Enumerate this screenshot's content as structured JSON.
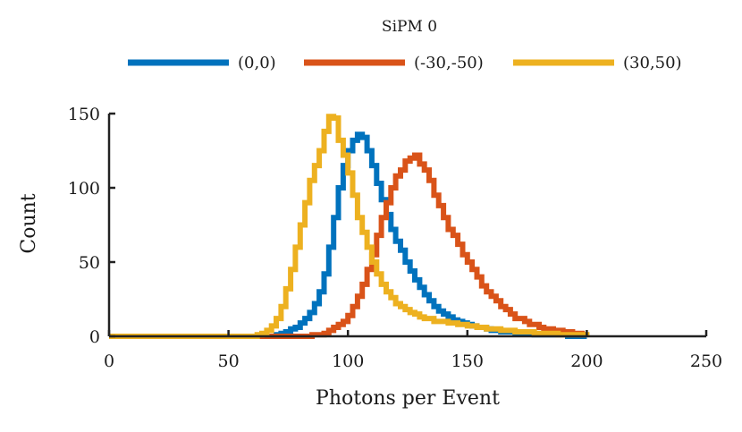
{
  "chart_data": {
    "type": "line",
    "style": "step-histogram",
    "title": "SiPM 0",
    "xlabel": "Photons per Event",
    "ylabel": "Count",
    "xlim": [
      0,
      250
    ],
    "ylim": [
      0,
      150
    ],
    "xticks": [
      "0",
      "50",
      "100",
      "150",
      "200",
      "250"
    ],
    "yticks": [
      "0",
      "50",
      "100",
      "150"
    ],
    "legend_position": "top",
    "grid": false,
    "series": [
      {
        "name": "(0,0)",
        "color": "#0072BD",
        "x": [
          0,
          5,
          10,
          15,
          20,
          25,
          30,
          35,
          40,
          45,
          50,
          55,
          60,
          62,
          64,
          66,
          68,
          70,
          72,
          74,
          76,
          78,
          80,
          82,
          84,
          86,
          88,
          90,
          92,
          94,
          96,
          98,
          100,
          102,
          104,
          106,
          108,
          110,
          112,
          114,
          116,
          118,
          120,
          122,
          124,
          126,
          128,
          130,
          132,
          134,
          136,
          138,
          140,
          142,
          144,
          146,
          148,
          150,
          152,
          154,
          156,
          158,
          160,
          162,
          164,
          166,
          168,
          170,
          172,
          174,
          176,
          178,
          180,
          182,
          184,
          186,
          188,
          190,
          192,
          194,
          196,
          198,
          200
        ],
        "y": [
          0,
          0,
          0,
          0,
          0,
          0,
          0,
          0,
          0,
          0,
          0,
          0,
          0,
          0,
          0,
          0,
          0,
          1,
          2,
          3,
          5,
          6,
          9,
          12,
          16,
          22,
          30,
          42,
          60,
          80,
          100,
          115,
          125,
          132,
          136,
          134,
          125,
          115,
          103,
          92,
          82,
          72,
          64,
          58,
          50,
          44,
          38,
          33,
          28,
          24,
          20,
          17,
          15,
          13,
          11,
          10,
          9,
          8,
          7,
          6,
          6,
          5,
          4,
          4,
          3,
          3,
          3,
          2,
          2,
          2,
          2,
          1,
          1,
          1,
          1,
          1,
          1,
          1,
          0,
          0,
          0,
          0,
          0
        ]
      },
      {
        "name": "(-30,-50)",
        "color": "#D95319",
        "x": [
          0,
          5,
          10,
          15,
          20,
          25,
          30,
          35,
          40,
          45,
          50,
          55,
          60,
          65,
          70,
          75,
          80,
          85,
          90,
          92,
          94,
          96,
          98,
          100,
          102,
          104,
          106,
          108,
          110,
          112,
          114,
          116,
          118,
          120,
          122,
          124,
          126,
          128,
          130,
          132,
          134,
          136,
          138,
          140,
          142,
          144,
          146,
          148,
          150,
          152,
          154,
          156,
          158,
          160,
          162,
          164,
          166,
          168,
          170,
          172,
          174,
          176,
          178,
          180,
          182,
          184,
          186,
          188,
          190,
          192,
          194,
          196,
          198,
          200
        ],
        "y": [
          0,
          0,
          0,
          0,
          0,
          0,
          0,
          0,
          0,
          0,
          0,
          0,
          0,
          0,
          0,
          0,
          0,
          1,
          2,
          4,
          6,
          8,
          10,
          14,
          20,
          27,
          35,
          45,
          55,
          68,
          80,
          90,
          100,
          108,
          112,
          118,
          120,
          122,
          116,
          112,
          105,
          95,
          88,
          80,
          72,
          68,
          62,
          55,
          50,
          45,
          40,
          34,
          30,
          27,
          24,
          20,
          18,
          15,
          12,
          12,
          10,
          8,
          8,
          6,
          5,
          5,
          4,
          4,
          3,
          3,
          2,
          2,
          1,
          1
        ]
      },
      {
        "name": "(30,50)",
        "color": "#EDB120",
        "x": [
          0,
          5,
          10,
          15,
          20,
          25,
          30,
          35,
          40,
          45,
          50,
          55,
          60,
          62,
          64,
          66,
          68,
          70,
          72,
          74,
          76,
          78,
          80,
          82,
          84,
          86,
          88,
          90,
          92,
          94,
          96,
          98,
          100,
          102,
          104,
          106,
          108,
          110,
          112,
          114,
          116,
          118,
          120,
          122,
          124,
          126,
          128,
          130,
          132,
          134,
          136,
          138,
          140,
          142,
          144,
          146,
          148,
          150,
          152,
          154,
          156,
          158,
          160,
          162,
          164,
          166,
          168,
          170,
          172,
          174,
          176,
          178,
          180,
          182,
          184,
          186,
          188,
          190,
          192,
          194,
          196,
          198,
          200
        ],
        "y": [
          0,
          0,
          0,
          0,
          0,
          0,
          0,
          0,
          0,
          0,
          0,
          0,
          0,
          1,
          2,
          4,
          7,
          12,
          20,
          32,
          45,
          60,
          75,
          90,
          105,
          115,
          125,
          138,
          148,
          147,
          132,
          122,
          110,
          95,
          80,
          70,
          60,
          50,
          42,
          35,
          30,
          26,
          22,
          20,
          18,
          16,
          15,
          13,
          12,
          12,
          10,
          10,
          10,
          9,
          9,
          8,
          8,
          7,
          7,
          6,
          6,
          5,
          5,
          5,
          4,
          4,
          4,
          3,
          3,
          3,
          3,
          2,
          2,
          2,
          2,
          2,
          1,
          1,
          1,
          1,
          1,
          1,
          0
        ]
      }
    ]
  }
}
